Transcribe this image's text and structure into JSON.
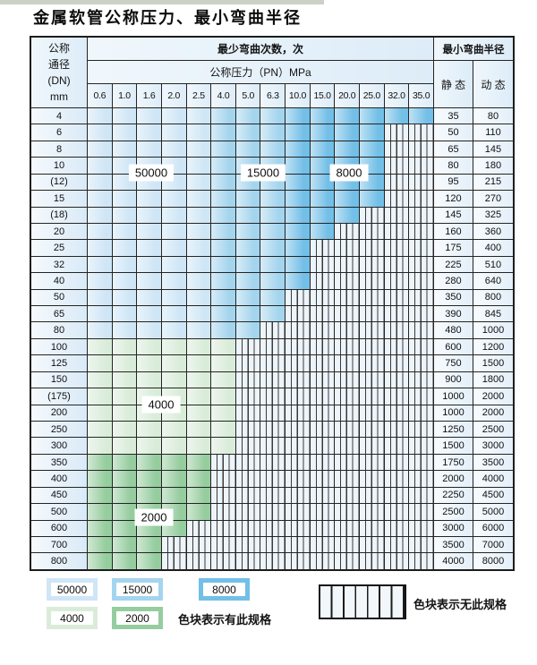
{
  "page": {
    "title": "金属软管公称压力、最小弯曲半径"
  },
  "table": {
    "header": {
      "dn_lines": [
        "公称",
        "通径",
        "(DN)",
        "mm"
      ],
      "bend_cycles": "最少弯曲次数，次",
      "min_bend_radius": "最小弯曲半径",
      "pressure": "公称压力（PN）MPa",
      "static_label": "静 态",
      "dynamic_label": "动 态",
      "pressure_values": [
        "0.6",
        "1.0",
        "1.6",
        "2.0",
        "2.5",
        "4.0",
        "5.0",
        "6.3",
        "10.0",
        "15.0",
        "20.0",
        "25.0",
        "32.0",
        "35.0"
      ]
    },
    "zone_colors": {
      "b50000": "#cfe6f6",
      "b15000": "#a4d5ee",
      "b8000": "#72bfe7",
      "g4000": "#d9ecd9",
      "g2000": "#96cd9f"
    },
    "rows": [
      {
        "dn": "4",
        "static": "35",
        "dynamic": "80",
        "segments": [
          [
            "b50000",
            5
          ],
          [
            "b15000",
            3
          ],
          [
            "b8000",
            6
          ]
        ]
      },
      {
        "dn": "6",
        "static": "50",
        "dynamic": "110",
        "segments": [
          [
            "b50000",
            5
          ],
          [
            "b15000",
            3
          ],
          [
            "b8000",
            4
          ]
        ]
      },
      {
        "dn": "8",
        "static": "65",
        "dynamic": "145",
        "segments": [
          [
            "b50000",
            5
          ],
          [
            "b15000",
            3
          ],
          [
            "b8000",
            4
          ]
        ]
      },
      {
        "dn": "10",
        "static": "80",
        "dynamic": "180",
        "segments": [
          [
            "b50000",
            5
          ],
          [
            "b15000",
            3
          ],
          [
            "b8000",
            4
          ]
        ]
      },
      {
        "dn": "(12)",
        "static": "95",
        "dynamic": "215",
        "segments": [
          [
            "b50000",
            5
          ],
          [
            "b15000",
            3
          ],
          [
            "b8000",
            4
          ]
        ]
      },
      {
        "dn": "15",
        "static": "120",
        "dynamic": "270",
        "segments": [
          [
            "b50000",
            5
          ],
          [
            "b15000",
            3
          ],
          [
            "b8000",
            4
          ]
        ]
      },
      {
        "dn": "(18)",
        "static": "145",
        "dynamic": "325",
        "segments": [
          [
            "b50000",
            5
          ],
          [
            "b15000",
            3
          ],
          [
            "b8000",
            3
          ]
        ]
      },
      {
        "dn": "20",
        "static": "160",
        "dynamic": "360",
        "segments": [
          [
            "b50000",
            5
          ],
          [
            "b15000",
            3
          ],
          [
            "b8000",
            2
          ]
        ]
      },
      {
        "dn": "25",
        "static": "175",
        "dynamic": "400",
        "segments": [
          [
            "b50000",
            5
          ],
          [
            "b15000",
            3
          ],
          [
            "b8000",
            1
          ]
        ]
      },
      {
        "dn": "32",
        "static": "225",
        "dynamic": "510",
        "segments": [
          [
            "b50000",
            5
          ],
          [
            "b15000",
            3
          ],
          [
            "b8000",
            1
          ]
        ]
      },
      {
        "dn": "40",
        "static": "280",
        "dynamic": "640",
        "segments": [
          [
            "b50000",
            5
          ],
          [
            "b15000",
            3
          ],
          [
            "b8000",
            1
          ]
        ]
      },
      {
        "dn": "50",
        "static": "350",
        "dynamic": "800",
        "segments": [
          [
            "b50000",
            5
          ],
          [
            "b15000",
            3
          ]
        ]
      },
      {
        "dn": "65",
        "static": "390",
        "dynamic": "845",
        "segments": [
          [
            "b50000",
            5
          ],
          [
            "b15000",
            3
          ]
        ]
      },
      {
        "dn": "80",
        "static": "480",
        "dynamic": "1000",
        "segments": [
          [
            "b50000",
            5
          ],
          [
            "b15000",
            2
          ]
        ]
      },
      {
        "dn": "100",
        "static": "600",
        "dynamic": "1200",
        "segments": [
          [
            "g4000",
            6
          ]
        ]
      },
      {
        "dn": "125",
        "static": "750",
        "dynamic": "1500",
        "segments": [
          [
            "g4000",
            6
          ]
        ]
      },
      {
        "dn": "150",
        "static": "900",
        "dynamic": "1800",
        "segments": [
          [
            "g4000",
            6
          ]
        ]
      },
      {
        "dn": "(175)",
        "static": "1000",
        "dynamic": "2000",
        "segments": [
          [
            "g4000",
            6
          ]
        ]
      },
      {
        "dn": "200",
        "static": "1000",
        "dynamic": "2000",
        "segments": [
          [
            "g4000",
            6
          ]
        ]
      },
      {
        "dn": "250",
        "static": "1250",
        "dynamic": "2500",
        "segments": [
          [
            "g4000",
            6
          ]
        ]
      },
      {
        "dn": "300",
        "static": "1500",
        "dynamic": "3000",
        "segments": [
          [
            "g4000",
            6
          ]
        ]
      },
      {
        "dn": "350",
        "static": "1750",
        "dynamic": "3500",
        "segments": [
          [
            "g2000",
            5
          ]
        ]
      },
      {
        "dn": "400",
        "static": "2000",
        "dynamic": "4000",
        "segments": [
          [
            "g2000",
            5
          ]
        ]
      },
      {
        "dn": "450",
        "static": "2250",
        "dynamic": "4500",
        "segments": [
          [
            "g2000",
            5
          ]
        ]
      },
      {
        "dn": "500",
        "static": "2500",
        "dynamic": "5000",
        "segments": [
          [
            "g2000",
            5
          ]
        ]
      },
      {
        "dn": "600",
        "static": "3000",
        "dynamic": "6000",
        "segments": [
          [
            "g2000",
            4
          ]
        ]
      },
      {
        "dn": "700",
        "static": "3500",
        "dynamic": "7000",
        "segments": [
          [
            "g2000",
            3
          ]
        ]
      },
      {
        "dn": "800",
        "static": "4000",
        "dynamic": "8000",
        "segments": [
          [
            "g2000",
            3
          ]
        ]
      }
    ],
    "overlay_labels": [
      {
        "id": "label-50000",
        "text": "50000"
      },
      {
        "id": "label-15000",
        "text": "15000"
      },
      {
        "id": "label-8000",
        "text": "8000"
      },
      {
        "id": "label-4000",
        "text": "4000"
      },
      {
        "id": "label-2000",
        "text": "2000"
      }
    ]
  },
  "legend": {
    "chips": [
      {
        "label": "50000",
        "color": "#cfe6f6"
      },
      {
        "label": "15000",
        "color": "#a4d5ee"
      },
      {
        "label": "8000",
        "color": "#72bfe7"
      },
      {
        "label": "4000",
        "color": "#d9ecd9"
      },
      {
        "label": "2000",
        "color": "#96cd9f"
      }
    ],
    "has_spec_text": "色块表示有此规格",
    "no_spec_text": "色块表示无此规格"
  }
}
